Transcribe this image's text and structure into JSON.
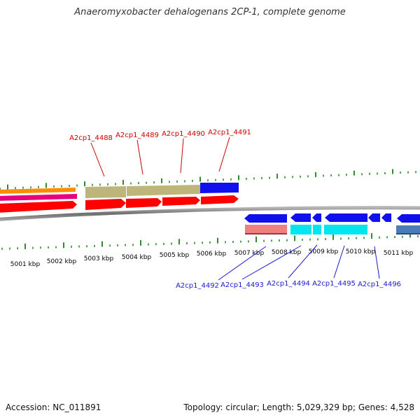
{
  "title": "Anaeromyxobacter dehalogenans 2CP-1, complete genome",
  "footer": {
    "accession": "Accession: NC_011891",
    "summary": "Topology: circular; Length: 5,029,329 bp; Genes: 4,528"
  },
  "colors": {
    "forward_label": "#cc0000",
    "reverse_label": "#1a1acc",
    "tick": "#2e8b2e",
    "backbone": "#8a8a8a",
    "gene_red": "#ff0000",
    "gene_blue": "#1010ee",
    "gene_olive": "#bdb57a",
    "gene_cyan": "#00e5ee",
    "gene_pink": "#f08080",
    "gene_steel": "#4a7fb5",
    "gene_orange": "#ff8c00",
    "gene_magenta": "#e6007e"
  },
  "scale": {
    "unit": "kbp",
    "labels": [
      "5001 kbp",
      "5002 kbp",
      "5003 kbp",
      "5004 kbp",
      "5005 kbp",
      "5006 kbp",
      "5007 kbp",
      "5008 kbp",
      "5009 kbp",
      "5010 kbp",
      "5011 kbp"
    ]
  },
  "forward_genes": [
    {
      "label": "A2cp1_4488"
    },
    {
      "label": "A2cp1_4489"
    },
    {
      "label": "A2cp1_4490"
    },
    {
      "label": "A2cp1_4491"
    }
  ],
  "reverse_genes": [
    {
      "label": "A2cp1_4492"
    },
    {
      "label": "A2cp1_4493"
    },
    {
      "label": "A2cp1_4494"
    },
    {
      "label": "A2cp1_4495"
    },
    {
      "label": "A2cp1_4496"
    }
  ]
}
